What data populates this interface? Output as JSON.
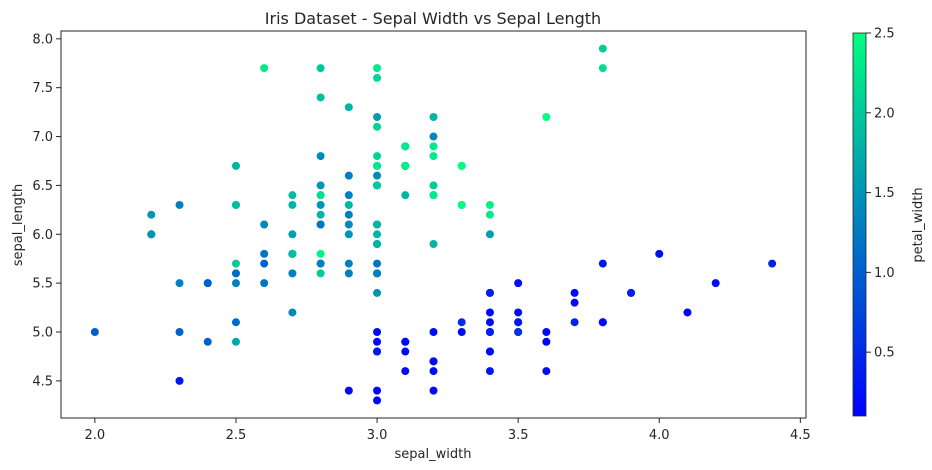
{
  "chart_data": {
    "type": "scatter",
    "title": "Iris Dataset - Sepal Width vs Sepal Length",
    "xlabel": "sepal_width",
    "ylabel": "sepal_length",
    "xlim": [
      1.88,
      4.52
    ],
    "ylim": [
      4.12,
      8.08
    ],
    "x_ticks": [
      2.0,
      2.5,
      3.0,
      3.5,
      4.0,
      4.5
    ],
    "x_tick_labels": [
      "2.0",
      "2.5",
      "3.0",
      "3.5",
      "4.0",
      "4.5"
    ],
    "y_ticks": [
      4.5,
      5.0,
      5.5,
      6.0,
      6.5,
      7.0,
      7.5,
      8.0
    ],
    "y_tick_labels": [
      "4.5",
      "5.0",
      "5.5",
      "6.0",
      "6.5",
      "7.0",
      "7.5",
      "8.0"
    ],
    "grid": false,
    "colorbar": {
      "label": "petal_width",
      "range": [
        0.1,
        2.5
      ],
      "ticks": [
        0.5,
        1.0,
        1.5,
        2.0,
        2.5
      ],
      "tick_labels": [
        "0.5",
        "1.0",
        "1.5",
        "2.0",
        "2.5"
      ],
      "colormap": [
        "#0000ff",
        "#00ff80"
      ]
    },
    "points": [
      {
        "x": 3.5,
        "y": 5.1,
        "c": 0.2
      },
      {
        "x": 3.0,
        "y": 4.9,
        "c": 0.2
      },
      {
        "x": 3.2,
        "y": 4.7,
        "c": 0.2
      },
      {
        "x": 3.1,
        "y": 4.6,
        "c": 0.2
      },
      {
        "x": 3.6,
        "y": 5.0,
        "c": 0.2
      },
      {
        "x": 3.9,
        "y": 5.4,
        "c": 0.4
      },
      {
        "x": 3.4,
        "y": 4.6,
        "c": 0.3
      },
      {
        "x": 3.4,
        "y": 5.0,
        "c": 0.2
      },
      {
        "x": 2.9,
        "y": 4.4,
        "c": 0.2
      },
      {
        "x": 3.1,
        "y": 4.9,
        "c": 0.1
      },
      {
        "x": 3.7,
        "y": 5.4,
        "c": 0.2
      },
      {
        "x": 3.4,
        "y": 4.8,
        "c": 0.2
      },
      {
        "x": 3.0,
        "y": 4.8,
        "c": 0.1
      },
      {
        "x": 3.0,
        "y": 4.3,
        "c": 0.1
      },
      {
        "x": 4.0,
        "y": 5.8,
        "c": 0.2
      },
      {
        "x": 4.4,
        "y": 5.7,
        "c": 0.4
      },
      {
        "x": 3.9,
        "y": 5.4,
        "c": 0.4
      },
      {
        "x": 3.5,
        "y": 5.1,
        "c": 0.3
      },
      {
        "x": 3.8,
        "y": 5.7,
        "c": 0.3
      },
      {
        "x": 3.8,
        "y": 5.1,
        "c": 0.3
      },
      {
        "x": 3.4,
        "y": 5.4,
        "c": 0.2
      },
      {
        "x": 3.7,
        "y": 5.1,
        "c": 0.4
      },
      {
        "x": 3.6,
        "y": 4.6,
        "c": 0.2
      },
      {
        "x": 3.3,
        "y": 5.1,
        "c": 0.5
      },
      {
        "x": 3.4,
        "y": 4.8,
        "c": 0.2
      },
      {
        "x": 3.0,
        "y": 5.0,
        "c": 0.2
      },
      {
        "x": 3.4,
        "y": 5.0,
        "c": 0.4
      },
      {
        "x": 3.5,
        "y": 5.2,
        "c": 0.2
      },
      {
        "x": 3.4,
        "y": 5.2,
        "c": 0.2
      },
      {
        "x": 3.2,
        "y": 4.7,
        "c": 0.2
      },
      {
        "x": 3.1,
        "y": 4.8,
        "c": 0.2
      },
      {
        "x": 3.4,
        "y": 5.4,
        "c": 0.4
      },
      {
        "x": 4.1,
        "y": 5.2,
        "c": 0.1
      },
      {
        "x": 4.2,
        "y": 5.5,
        "c": 0.2
      },
      {
        "x": 3.1,
        "y": 4.9,
        "c": 0.2
      },
      {
        "x": 3.2,
        "y": 5.0,
        "c": 0.2
      },
      {
        "x": 3.5,
        "y": 5.5,
        "c": 0.2
      },
      {
        "x": 3.6,
        "y": 4.9,
        "c": 0.1
      },
      {
        "x": 3.0,
        "y": 4.4,
        "c": 0.2
      },
      {
        "x": 3.4,
        "y": 5.1,
        "c": 0.2
      },
      {
        "x": 3.5,
        "y": 5.0,
        "c": 0.3
      },
      {
        "x": 2.3,
        "y": 4.5,
        "c": 0.3
      },
      {
        "x": 3.2,
        "y": 4.4,
        "c": 0.2
      },
      {
        "x": 3.5,
        "y": 5.0,
        "c": 0.6
      },
      {
        "x": 3.8,
        "y": 5.1,
        "c": 0.4
      },
      {
        "x": 3.0,
        "y": 4.8,
        "c": 0.3
      },
      {
        "x": 3.8,
        "y": 5.1,
        "c": 0.2
      },
      {
        "x": 3.2,
        "y": 4.6,
        "c": 0.2
      },
      {
        "x": 3.7,
        "y": 5.3,
        "c": 0.2
      },
      {
        "x": 3.3,
        "y": 5.0,
        "c": 0.2
      },
      {
        "x": 3.2,
        "y": 7.0,
        "c": 1.4
      },
      {
        "x": 3.2,
        "y": 6.4,
        "c": 1.5
      },
      {
        "x": 3.1,
        "y": 6.9,
        "c": 1.5
      },
      {
        "x": 2.3,
        "y": 5.5,
        "c": 1.3
      },
      {
        "x": 2.8,
        "y": 6.5,
        "c": 1.5
      },
      {
        "x": 2.8,
        "y": 5.7,
        "c": 1.3
      },
      {
        "x": 3.3,
        "y": 6.3,
        "c": 1.6
      },
      {
        "x": 2.4,
        "y": 4.9,
        "c": 1.0
      },
      {
        "x": 2.9,
        "y": 6.6,
        "c": 1.3
      },
      {
        "x": 2.7,
        "y": 5.2,
        "c": 1.4
      },
      {
        "x": 2.0,
        "y": 5.0,
        "c": 1.0
      },
      {
        "x": 3.0,
        "y": 5.9,
        "c": 1.5
      },
      {
        "x": 2.2,
        "y": 6.0,
        "c": 1.0
      },
      {
        "x": 2.9,
        "y": 6.1,
        "c": 1.4
      },
      {
        "x": 2.9,
        "y": 5.6,
        "c": 1.3
      },
      {
        "x": 3.1,
        "y": 6.7,
        "c": 1.4
      },
      {
        "x": 3.0,
        "y": 5.6,
        "c": 1.5
      },
      {
        "x": 2.7,
        "y": 5.8,
        "c": 1.0
      },
      {
        "x": 2.2,
        "y": 6.2,
        "c": 1.5
      },
      {
        "x": 2.5,
        "y": 5.6,
        "c": 1.1
      },
      {
        "x": 3.2,
        "y": 5.9,
        "c": 1.8
      },
      {
        "x": 2.8,
        "y": 6.1,
        "c": 1.3
      },
      {
        "x": 2.5,
        "y": 6.3,
        "c": 1.5
      },
      {
        "x": 2.8,
        "y": 6.1,
        "c": 1.2
      },
      {
        "x": 2.9,
        "y": 6.4,
        "c": 1.3
      },
      {
        "x": 3.0,
        "y": 6.6,
        "c": 1.4
      },
      {
        "x": 2.8,
        "y": 6.8,
        "c": 1.4
      },
      {
        "x": 3.0,
        "y": 6.7,
        "c": 1.7
      },
      {
        "x": 2.9,
        "y": 6.0,
        "c": 1.5
      },
      {
        "x": 2.6,
        "y": 5.7,
        "c": 1.0
      },
      {
        "x": 2.4,
        "y": 5.5,
        "c": 1.1
      },
      {
        "x": 2.4,
        "y": 5.5,
        "c": 1.0
      },
      {
        "x": 2.7,
        "y": 5.8,
        "c": 1.2
      },
      {
        "x": 2.7,
        "y": 6.0,
        "c": 1.6
      },
      {
        "x": 3.0,
        "y": 5.4,
        "c": 1.5
      },
      {
        "x": 3.4,
        "y": 6.0,
        "c": 1.6
      },
      {
        "x": 3.1,
        "y": 6.7,
        "c": 1.5
      },
      {
        "x": 2.3,
        "y": 6.3,
        "c": 1.3
      },
      {
        "x": 3.0,
        "y": 5.6,
        "c": 1.3
      },
      {
        "x": 2.5,
        "y": 5.5,
        "c": 1.3
      },
      {
        "x": 2.6,
        "y": 5.5,
        "c": 1.2
      },
      {
        "x": 3.0,
        "y": 6.1,
        "c": 1.4
      },
      {
        "x": 2.6,
        "y": 5.8,
        "c": 1.2
      },
      {
        "x": 2.3,
        "y": 5.0,
        "c": 1.0
      },
      {
        "x": 2.7,
        "y": 5.6,
        "c": 1.3
      },
      {
        "x": 3.0,
        "y": 5.7,
        "c": 1.2
      },
      {
        "x": 2.9,
        "y": 5.7,
        "c": 1.3
      },
      {
        "x": 2.9,
        "y": 6.2,
        "c": 1.3
      },
      {
        "x": 2.5,
        "y": 5.1,
        "c": 1.1
      },
      {
        "x": 2.8,
        "y": 5.7,
        "c": 1.3
      },
      {
        "x": 3.3,
        "y": 6.3,
        "c": 2.5
      },
      {
        "x": 2.7,
        "y": 5.8,
        "c": 1.9
      },
      {
        "x": 3.0,
        "y": 7.1,
        "c": 2.1
      },
      {
        "x": 2.9,
        "y": 6.3,
        "c": 1.8
      },
      {
        "x": 3.0,
        "y": 6.5,
        "c": 2.2
      },
      {
        "x": 3.0,
        "y": 7.6,
        "c": 2.1
      },
      {
        "x": 2.5,
        "y": 4.9,
        "c": 1.7
      },
      {
        "x": 2.9,
        "y": 7.3,
        "c": 1.8
      },
      {
        "x": 2.5,
        "y": 6.7,
        "c": 1.8
      },
      {
        "x": 3.6,
        "y": 7.2,
        "c": 2.5
      },
      {
        "x": 3.2,
        "y": 6.5,
        "c": 2.0
      },
      {
        "x": 2.7,
        "y": 6.4,
        "c": 1.9
      },
      {
        "x": 3.0,
        "y": 6.8,
        "c": 2.1
      },
      {
        "x": 2.5,
        "y": 5.7,
        "c": 2.0
      },
      {
        "x": 2.8,
        "y": 5.8,
        "c": 2.4
      },
      {
        "x": 3.2,
        "y": 6.4,
        "c": 2.3
      },
      {
        "x": 3.0,
        "y": 6.5,
        "c": 1.8
      },
      {
        "x": 3.8,
        "y": 7.7,
        "c": 2.2
      },
      {
        "x": 2.6,
        "y": 7.7,
        "c": 2.3
      },
      {
        "x": 2.2,
        "y": 6.0,
        "c": 1.5
      },
      {
        "x": 3.2,
        "y": 6.9,
        "c": 2.3
      },
      {
        "x": 2.8,
        "y": 5.6,
        "c": 2.0
      },
      {
        "x": 2.8,
        "y": 7.7,
        "c": 2.0
      },
      {
        "x": 2.7,
        "y": 6.3,
        "c": 1.8
      },
      {
        "x": 3.3,
        "y": 6.7,
        "c": 2.1
      },
      {
        "x": 3.2,
        "y": 7.2,
        "c": 1.8
      },
      {
        "x": 2.8,
        "y": 6.2,
        "c": 1.8
      },
      {
        "x": 3.0,
        "y": 6.1,
        "c": 1.8
      },
      {
        "x": 2.8,
        "y": 6.4,
        "c": 2.1
      },
      {
        "x": 3.0,
        "y": 7.2,
        "c": 1.6
      },
      {
        "x": 2.8,
        "y": 7.4,
        "c": 1.9
      },
      {
        "x": 3.8,
        "y": 7.9,
        "c": 2.0
      },
      {
        "x": 2.8,
        "y": 6.4,
        "c": 2.2
      },
      {
        "x": 2.8,
        "y": 6.3,
        "c": 1.5
      },
      {
        "x": 2.6,
        "y": 6.1,
        "c": 1.4
      },
      {
        "x": 3.0,
        "y": 7.7,
        "c": 2.3
      },
      {
        "x": 3.4,
        "y": 6.3,
        "c": 2.4
      },
      {
        "x": 3.1,
        "y": 6.4,
        "c": 1.8
      },
      {
        "x": 3.0,
        "y": 6.0,
        "c": 1.8
      },
      {
        "x": 3.1,
        "y": 6.9,
        "c": 2.1
      },
      {
        "x": 3.1,
        "y": 6.7,
        "c": 2.4
      },
      {
        "x": 3.1,
        "y": 6.9,
        "c": 2.3
      },
      {
        "x": 2.7,
        "y": 5.8,
        "c": 1.9
      },
      {
        "x": 3.2,
        "y": 6.8,
        "c": 2.3
      },
      {
        "x": 3.3,
        "y": 6.7,
        "c": 2.5
      },
      {
        "x": 3.0,
        "y": 6.7,
        "c": 2.3
      },
      {
        "x": 2.5,
        "y": 6.3,
        "c": 1.9
      },
      {
        "x": 3.0,
        "y": 6.5,
        "c": 2.0
      },
      {
        "x": 3.4,
        "y": 6.2,
        "c": 2.3
      },
      {
        "x": 3.0,
        "y": 5.9,
        "c": 1.8
      }
    ]
  }
}
